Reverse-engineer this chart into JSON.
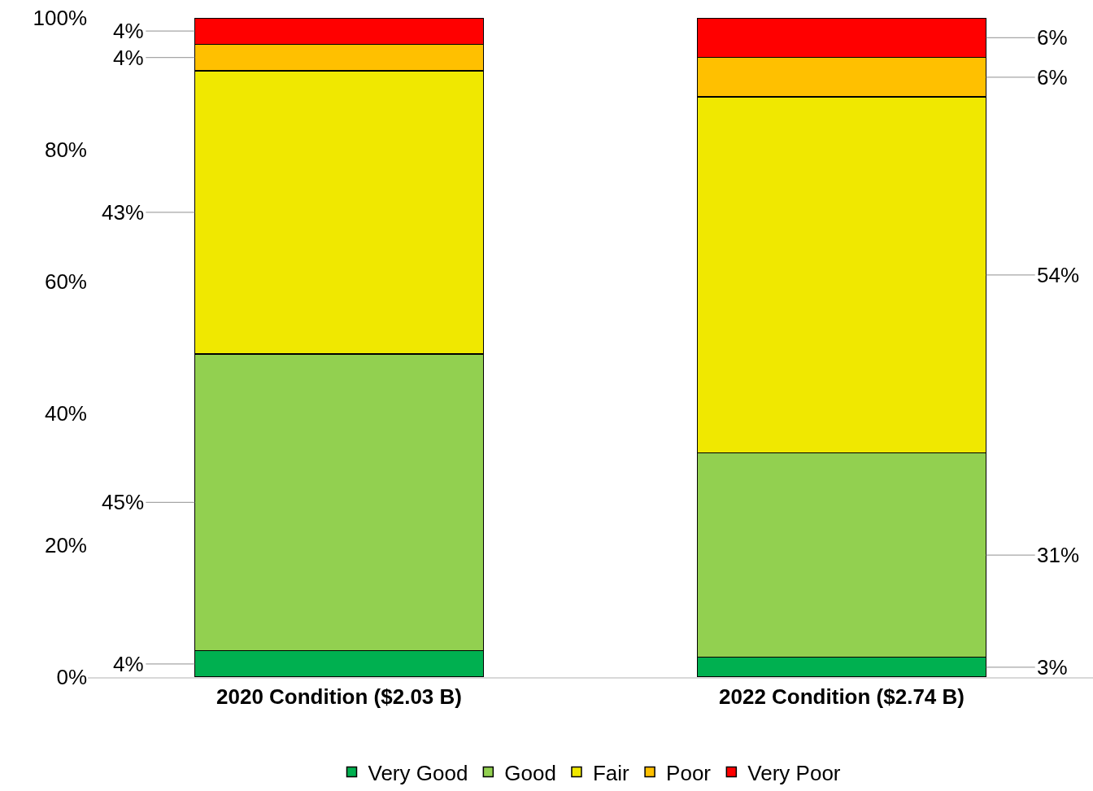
{
  "chart_data": {
    "type": "bar",
    "stacked": true,
    "categories": [
      "2020 Condition ($2.03 B)",
      "2022 Condition ($2.74 B)"
    ],
    "series": [
      {
        "name": "Very Good",
        "color": "#00b050",
        "values": [
          4,
          3
        ],
        "value_labels": [
          "4%",
          "3%"
        ]
      },
      {
        "name": "Good",
        "color": "#92d050",
        "values": [
          45,
          31
        ],
        "value_labels": [
          "45%",
          "31%"
        ]
      },
      {
        "name": "Fair",
        "color": "#f0e800",
        "values": [
          43,
          54
        ],
        "value_labels": [
          "43%",
          "54%"
        ]
      },
      {
        "name": "Poor",
        "color": "#ffc000",
        "values": [
          4,
          6
        ],
        "value_labels": [
          "4%",
          "6%"
        ]
      },
      {
        "name": "Very Poor",
        "color": "#ff0000",
        "values": [
          4,
          6
        ],
        "value_labels": [
          "4%",
          "6%"
        ]
      }
    ],
    "ylim": [
      0,
      100
    ],
    "yticks": [
      {
        "value": 0,
        "label": "0%"
      },
      {
        "value": 20,
        "label": "20%"
      },
      {
        "value": 40,
        "label": "40%"
      },
      {
        "value": 60,
        "label": "60%"
      },
      {
        "value": 80,
        "label": "80%"
      },
      {
        "value": 100,
        "label": "100%"
      }
    ],
    "legend": "bottom"
  }
}
